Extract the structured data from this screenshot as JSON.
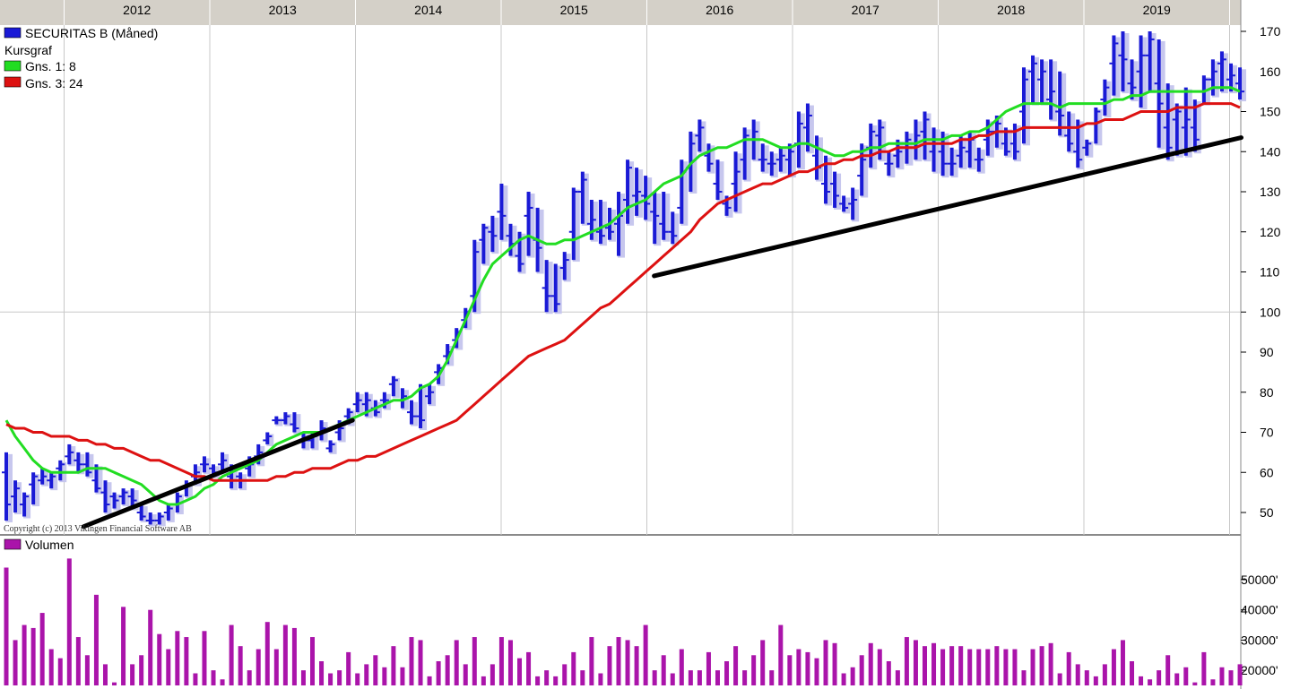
{
  "chart_data": [
    {
      "type": "ohlc",
      "title": "SECURITAS B (Måned)",
      "subtitle": "Kursgraf",
      "copyright": "Copyright (c) 2013 Vikingen Financial Software AB",
      "years": [
        "2012",
        "2013",
        "2014",
        "2015",
        "2016",
        "2017",
        "2018",
        "2019"
      ],
      "y_ticks": [
        50,
        60,
        70,
        80,
        90,
        100,
        110,
        120,
        130,
        140,
        150,
        160,
        170
      ],
      "ylim": [
        45,
        170
      ],
      "grid": true,
      "bar_color": "#1a1ad6",
      "series": [
        {
          "name": "SECURITAS B (Måned)",
          "color": "#1a1ad6",
          "high": [
            65,
            58,
            55,
            60,
            61,
            60,
            63,
            67,
            65,
            65,
            62,
            58,
            55,
            56,
            56,
            52,
            50,
            50,
            52,
            55,
            58,
            62,
            64,
            62,
            65,
            62,
            60,
            64,
            67,
            70,
            74,
            75,
            75,
            70,
            70,
            73,
            68,
            73,
            76,
            80,
            80,
            78,
            80,
            84,
            81,
            78,
            82,
            82,
            87,
            92,
            96,
            101,
            118,
            122,
            124,
            132,
            122,
            120,
            130,
            126,
            113,
            112,
            115,
            131,
            135,
            128,
            128,
            126,
            130,
            138,
            136,
            134,
            130,
            130,
            125,
            138,
            145,
            148,
            142,
            138,
            129,
            140,
            146,
            148,
            142,
            140,
            141,
            142,
            150,
            152,
            144,
            139,
            135,
            129,
            131,
            142,
            147,
            148,
            140,
            143,
            145,
            148,
            150,
            146,
            145,
            141,
            144,
            145,
            141,
            148,
            149,
            146,
            147,
            161,
            164,
            163,
            163,
            160,
            150,
            148,
            143,
            151,
            158,
            169,
            170,
            163,
            169,
            170,
            168,
            157,
            152,
            156,
            153,
            159,
            163,
            165,
            162,
            161
          ],
          "low": [
            48,
            50,
            49,
            52,
            57,
            56,
            58,
            62,
            60,
            59,
            55,
            50,
            51,
            52,
            51,
            48,
            47,
            47,
            48,
            50,
            54,
            57,
            60,
            59,
            60,
            56,
            56,
            59,
            62,
            67,
            72,
            72,
            70,
            66,
            66,
            68,
            65,
            68,
            72,
            75,
            74,
            74,
            76,
            79,
            76,
            72,
            71,
            77,
            82,
            87,
            91,
            96,
            100,
            112,
            115,
            118,
            114,
            110,
            114,
            110,
            100,
            100,
            108,
            113,
            122,
            118,
            117,
            118,
            114,
            122,
            124,
            123,
            117,
            118,
            117,
            122,
            130,
            140,
            135,
            128,
            124,
            125,
            133,
            138,
            135,
            134,
            135,
            134,
            136,
            140,
            133,
            127,
            126,
            125,
            123,
            129,
            136,
            138,
            134,
            136,
            137,
            138,
            138,
            135,
            134,
            134,
            136,
            136,
            135,
            139,
            141,
            139,
            138,
            142,
            152,
            152,
            148,
            144,
            140,
            136,
            139,
            142,
            149,
            154,
            155,
            153,
            151,
            155,
            141,
            138,
            139,
            139,
            140,
            152,
            154,
            155,
            155,
            153
          ],
          "open": [
            60,
            54,
            52,
            57,
            58,
            58,
            61,
            64,
            63,
            62,
            58,
            55,
            54,
            54,
            54,
            50,
            48,
            48,
            50,
            52,
            56,
            59,
            62,
            61,
            62,
            59,
            59,
            61,
            64,
            68,
            73,
            73,
            72,
            68,
            68,
            70,
            66,
            70,
            74,
            77,
            77,
            76,
            78,
            82,
            78,
            75,
            74,
            79,
            85,
            89,
            93,
            98,
            104,
            118,
            120,
            125,
            119,
            114,
            124,
            118,
            106,
            104,
            111,
            120,
            130,
            122,
            120,
            121,
            122,
            128,
            129,
            129,
            125,
            122,
            120,
            126,
            136,
            144,
            139,
            132,
            127,
            132,
            138,
            143,
            138,
            137,
            138,
            138,
            142,
            146,
            139,
            132,
            132,
            127,
            127,
            134,
            141,
            144,
            137,
            139,
            141,
            142,
            145,
            140,
            140,
            137,
            139,
            140,
            138,
            143,
            145,
            142,
            142,
            150,
            160,
            158,
            153,
            150,
            144,
            140,
            141,
            147,
            153,
            162,
            164,
            157,
            160,
            164,
            157,
            146,
            148,
            146,
            146,
            155,
            158,
            162,
            158,
            157
          ],
          "close": [
            52,
            56,
            54,
            59,
            59,
            59,
            62,
            65,
            62,
            60,
            56,
            52,
            53,
            55,
            53,
            49,
            48,
            49,
            51,
            54,
            57,
            60,
            62,
            60,
            63,
            58,
            58,
            62,
            65,
            69,
            73,
            74,
            71,
            68,
            69,
            71,
            67,
            71,
            75,
            78,
            78,
            75,
            78,
            83,
            79,
            74,
            73,
            80,
            86,
            90,
            95,
            100,
            115,
            121,
            119,
            124,
            117,
            112,
            126,
            116,
            104,
            102,
            113,
            130,
            133,
            123,
            119,
            120,
            124,
            136,
            130,
            127,
            124,
            120,
            119,
            135,
            142,
            146,
            137,
            130,
            126,
            135,
            144,
            145,
            138,
            137,
            139,
            140,
            147,
            149,
            136,
            130,
            129,
            126,
            128,
            138,
            145,
            146,
            137,
            140,
            143,
            144,
            148,
            142,
            137,
            137,
            141,
            143,
            138,
            145,
            147,
            140,
            140,
            158,
            162,
            160,
            155,
            149,
            142,
            138,
            142,
            150,
            156,
            167,
            163,
            156,
            164,
            168,
            152,
            141,
            150,
            148,
            143,
            158,
            160,
            163,
            159,
            155
          ]
        },
        {
          "name": "Gns. 1: 8",
          "color": "#22dd22",
          "values": [
            73,
            69,
            66,
            63,
            61,
            60,
            60,
            60,
            60,
            61,
            61,
            61,
            60,
            59,
            58,
            57,
            55,
            53,
            52,
            52,
            53,
            54,
            56,
            57,
            59,
            60,
            61,
            62,
            63,
            65,
            67,
            68,
            69,
            70,
            70,
            70,
            71,
            72,
            73,
            74,
            75,
            76,
            77,
            78,
            78,
            79,
            81,
            82,
            84,
            88,
            93,
            98,
            103,
            108,
            112,
            114,
            116,
            118,
            119,
            118,
            117,
            117,
            118,
            118,
            119,
            120,
            121,
            122,
            124,
            126,
            127,
            128,
            130,
            132,
            133,
            134,
            137,
            139,
            140,
            141,
            141,
            142,
            143,
            143,
            143,
            142,
            141,
            141,
            142,
            142,
            141,
            140,
            139,
            139,
            140,
            140,
            141,
            141,
            142,
            142,
            142,
            142,
            143,
            143,
            143,
            144,
            144,
            145,
            145,
            146,
            148,
            150,
            151,
            152,
            152,
            152,
            152,
            151,
            152,
            152,
            152,
            152,
            152,
            153,
            153,
            154,
            154,
            155,
            155,
            155,
            155,
            155,
            155,
            155,
            156,
            156,
            156,
            155
          ]
        },
        {
          "name": "Gns. 3: 24",
          "color": "#dd1111",
          "values": [
            72,
            71,
            71,
            70,
            70,
            69,
            69,
            69,
            68,
            68,
            67,
            67,
            66,
            66,
            65,
            64,
            63,
            63,
            62,
            61,
            60,
            59,
            59,
            58,
            58,
            58,
            58,
            58,
            58,
            58,
            59,
            59,
            60,
            60,
            61,
            61,
            61,
            62,
            63,
            63,
            64,
            64,
            65,
            66,
            67,
            68,
            69,
            70,
            71,
            72,
            73,
            75,
            77,
            79,
            81,
            83,
            85,
            87,
            89,
            90,
            91,
            92,
            93,
            95,
            97,
            99,
            101,
            102,
            104,
            106,
            108,
            110,
            112,
            114,
            116,
            118,
            120,
            123,
            125,
            127,
            128,
            129,
            130,
            131,
            132,
            132,
            133,
            134,
            135,
            135,
            136,
            137,
            137,
            138,
            138,
            139,
            139,
            140,
            140,
            141,
            141,
            141,
            142,
            142,
            142,
            142,
            143,
            143,
            144,
            144,
            145,
            145,
            145,
            146,
            146,
            146,
            146,
            146,
            146,
            146,
            147,
            147,
            148,
            148,
            148,
            149,
            150,
            150,
            150,
            150,
            151,
            151,
            151,
            152,
            152,
            152,
            152,
            151
          ]
        }
      ],
      "trendlines": [
        {
          "from": [
            0.135,
            46.5
          ],
          "to": [
            1.98,
            73
          ]
        },
        {
          "from": [
            4.05,
            109
          ],
          "to": [
            8.08,
            143.5
          ]
        }
      ]
    },
    {
      "type": "bar",
      "title": "Volumen",
      "y_ticks": [
        "20000'",
        "30000'",
        "40000'",
        "50000'"
      ],
      "y_tick_values": [
        20000,
        30000,
        40000,
        50000
      ],
      "ylim": [
        15000,
        58000
      ],
      "color": "#aa14aa",
      "values": [
        54000,
        30000,
        35000,
        34000,
        39000,
        27000,
        24000,
        57000,
        31000,
        25000,
        45000,
        22000,
        16000,
        41000,
        22000,
        25000,
        40000,
        32000,
        27000,
        33000,
        31000,
        19000,
        33000,
        20000,
        17000,
        35000,
        28000,
        20000,
        27000,
        36000,
        27000,
        35000,
        34000,
        20000,
        31000,
        23000,
        19000,
        20000,
        26000,
        19000,
        22000,
        25000,
        21000,
        28000,
        21000,
        31000,
        30000,
        18000,
        23000,
        25000,
        30000,
        22000,
        31000,
        18000,
        22000,
        31000,
        30000,
        24000,
        26000,
        18000,
        20000,
        18000,
        22000,
        26000,
        20000,
        31000,
        19000,
        28000,
        31000,
        30000,
        28000,
        35000,
        20000,
        25000,
        19000,
        27000,
        20000,
        20000,
        26000,
        20000,
        23000,
        28000,
        20000,
        25000,
        30000,
        20000,
        35000,
        25000,
        27000,
        26000,
        24000,
        30000,
        29000,
        19000,
        21000,
        25000,
        29000,
        27000,
        23000,
        20000,
        31000,
        30000,
        28000,
        29000,
        27000,
        28000,
        28000,
        27000,
        27000,
        27000,
        28000,
        27000,
        27000,
        20000,
        27000,
        28000,
        29000,
        19000,
        26000,
        22000,
        20000,
        18000,
        22000,
        27000,
        30000,
        23000,
        18000,
        17000,
        20000,
        25000,
        19000,
        21000,
        16000,
        26000,
        17000,
        21000,
        20000,
        22000,
        21000,
        18000,
        17000
      ]
    }
  ]
}
